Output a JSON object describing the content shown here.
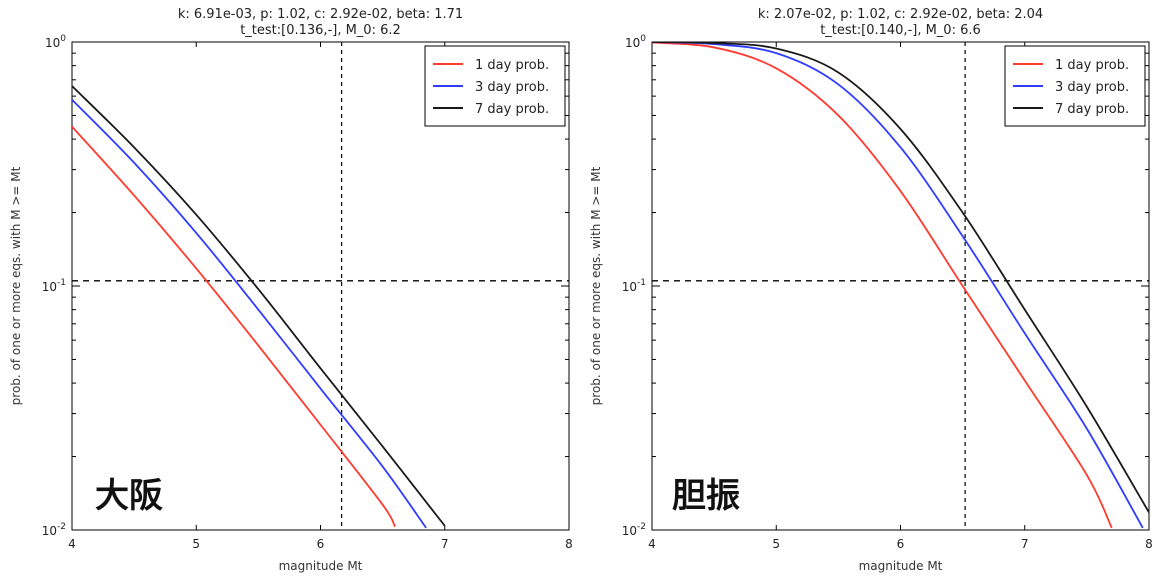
{
  "chart_data": [
    {
      "type": "line",
      "title": "k: 6.91e-03, p: 1.02, c: 2.92e-02, beta: 1.71",
      "subtitle": "t_test:[0.136,-], M_0: 6.2",
      "xlabel": "magnitude Mt",
      "ylabel": "prob. of one or more eqs. with M >= Mt",
      "xlim": [
        4,
        8
      ],
      "ylim": [
        0.01,
        1
      ],
      "yscale": "log",
      "x_ticks": [
        "4",
        "5",
        "6",
        "7",
        "8"
      ],
      "y_ticks": [
        {
          "base": "10",
          "exp": "0"
        },
        {
          "base": "10",
          "exp": "-1"
        },
        {
          "base": "10",
          "exp": "-2"
        }
      ],
      "legend_position": "top-right",
      "annotation": "大阪",
      "reference_lines": {
        "vertical_x": 6.17,
        "horizontal_y": 0.105
      },
      "series": [
        {
          "name": "1 day prob.",
          "color": "#ff3b30",
          "x": [
            4.0,
            4.5,
            5.0,
            5.5,
            6.0,
            6.5,
            6.6
          ],
          "y": [
            0.45,
            0.235,
            0.118,
            0.057,
            0.027,
            0.0127,
            0.0103
          ]
        },
        {
          "name": "3 day prob.",
          "color": "#2f3cff",
          "x": [
            4.0,
            4.5,
            5.0,
            5.5,
            6.0,
            6.5,
            6.85
          ],
          "y": [
            0.58,
            0.32,
            0.165,
            0.08,
            0.038,
            0.0182,
            0.0102
          ]
        },
        {
          "name": "7 day prob.",
          "color": "#1a1a1a",
          "x": [
            4.0,
            4.5,
            5.0,
            5.5,
            6.0,
            6.5,
            7.0
          ],
          "y": [
            0.66,
            0.37,
            0.196,
            0.097,
            0.046,
            0.022,
            0.0104
          ]
        }
      ]
    },
    {
      "type": "line",
      "title": "k: 2.07e-02, p: 1.02, c: 2.92e-02, beta: 2.04",
      "subtitle": "t_test:[0.140,-], M_0: 6.6",
      "xlabel": "magnitude Mt",
      "ylabel": "prob. of one or more eqs. with M >= Mt",
      "xlim": [
        4,
        8
      ],
      "ylim": [
        0.01,
        1
      ],
      "yscale": "log",
      "x_ticks": [
        "4",
        "5",
        "6",
        "7",
        "8"
      ],
      "y_ticks": [
        {
          "base": "10",
          "exp": "0"
        },
        {
          "base": "10",
          "exp": "-1"
        },
        {
          "base": "10",
          "exp": "-2"
        }
      ],
      "legend_position": "top-right",
      "annotation": "胆振",
      "reference_lines": {
        "vertical_x": 6.52,
        "horizontal_y": 0.105
      },
      "series": [
        {
          "name": "1 day prob.",
          "color": "#ff3b30",
          "x": [
            4.0,
            4.5,
            5.0,
            5.5,
            6.0,
            6.5,
            7.0,
            7.5,
            7.7
          ],
          "y": [
            0.995,
            0.95,
            0.78,
            0.5,
            0.245,
            0.1,
            0.041,
            0.0168,
            0.0102
          ]
        },
        {
          "name": "3 day prob.",
          "color": "#2f3cff",
          "x": [
            4.0,
            4.5,
            5.0,
            5.5,
            6.0,
            6.5,
            7.0,
            7.5,
            7.95
          ],
          "y": [
            1.0,
            0.98,
            0.9,
            0.67,
            0.37,
            0.16,
            0.064,
            0.026,
            0.0102
          ]
        },
        {
          "name": "7 day prob.",
          "color": "#1a1a1a",
          "x": [
            4.0,
            4.5,
            5.0,
            5.5,
            6.0,
            6.5,
            7.0,
            7.5,
            8.0
          ],
          "y": [
            1.0,
            0.99,
            0.94,
            0.75,
            0.44,
            0.2,
            0.08,
            0.032,
            0.0118
          ]
        }
      ]
    }
  ]
}
